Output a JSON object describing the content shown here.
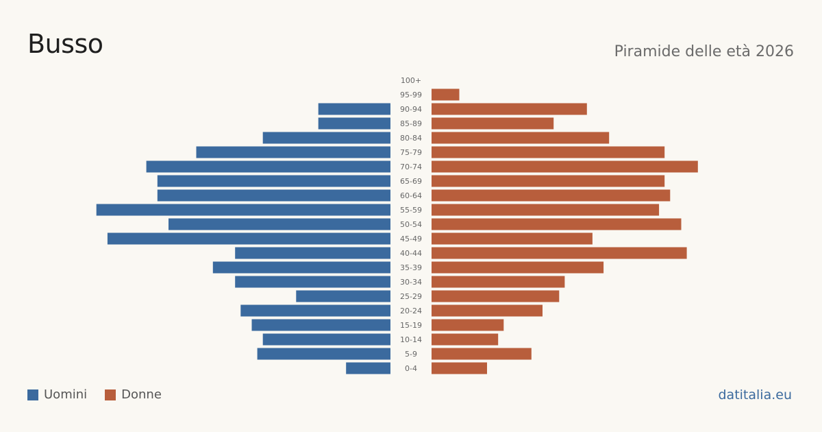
{
  "header": {
    "title": "Busso",
    "subtitle": "Piramide delle età 2026"
  },
  "legend": {
    "men_label": "Uomini",
    "women_label": "Donne"
  },
  "footer": {
    "source": "datitalia.eu"
  },
  "colors": {
    "men": "#3b6a9e",
    "women": "#b85e3c"
  },
  "chart_data": {
    "type": "bar",
    "orientation": "horizontal-pyramid",
    "title": "Busso",
    "subtitle": "Piramide delle età 2026",
    "categories": [
      "0-4",
      "5-9",
      "10-14",
      "15-19",
      "20-24",
      "25-29",
      "30-34",
      "35-39",
      "40-44",
      "45-49",
      "50-54",
      "55-59",
      "60-64",
      "65-69",
      "70-74",
      "75-79",
      "80-84",
      "85-89",
      "90-94",
      "95-99",
      "100+"
    ],
    "series": [
      {
        "name": "Uomini",
        "values": [
          8,
          24,
          23,
          25,
          27,
          17,
          28,
          32,
          28,
          51,
          40,
          53,
          42,
          42,
          44,
          35,
          23,
          13,
          13,
          0,
          0
        ]
      },
      {
        "name": "Donne",
        "values": [
          10,
          18,
          12,
          13,
          20,
          23,
          24,
          31,
          46,
          29,
          45,
          41,
          43,
          42,
          48,
          42,
          32,
          22,
          28,
          5,
          0
        ]
      }
    ],
    "grid": false,
    "legend_position": "bottom-left"
  }
}
